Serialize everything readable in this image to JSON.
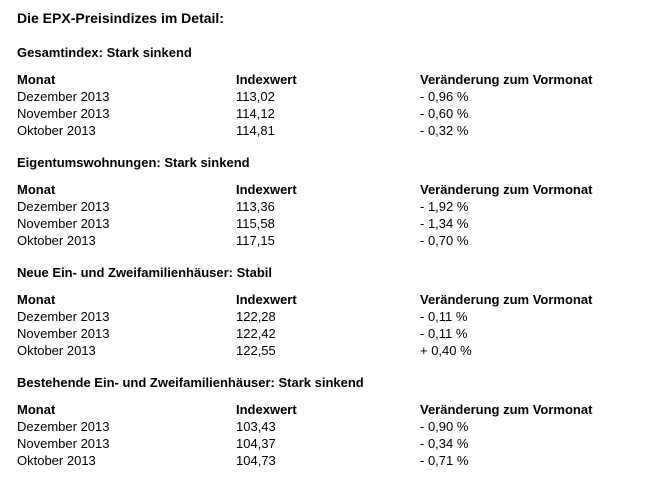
{
  "page": {
    "title": "Die EPX-Preisindizes im Detail:"
  },
  "columns": {
    "monat": "Monat",
    "indexwert": "Indexwert",
    "veraenderung": "Veränderung zum Vormonat"
  },
  "sections": [
    {
      "heading": "Gesamtindex: Stark sinkend",
      "rows": [
        {
          "monat": "Dezember 2013",
          "indexwert": "113,02",
          "veraenderung": "- 0,96 %"
        },
        {
          "monat": "November 2013",
          "indexwert": "114,12",
          "veraenderung": "- 0,60 %"
        },
        {
          "monat": "Oktober 2013",
          "indexwert": "114,81",
          "veraenderung": "- 0,32 %"
        }
      ]
    },
    {
      "heading": "Eigentumswohnungen: Stark sinkend",
      "rows": [
        {
          "monat": "Dezember 2013",
          "indexwert": "113,36",
          "veraenderung": "- 1,92 %"
        },
        {
          "monat": "November 2013",
          "indexwert": "115,58",
          "veraenderung": "- 1,34 %"
        },
        {
          "monat": "Oktober 2013",
          "indexwert": "117,15",
          "veraenderung": "- 0,70 %"
        }
      ]
    },
    {
      "heading": "Neue Ein- und Zweifamilienhäuser: Stabil",
      "rows": [
        {
          "monat": "Dezember 2013",
          "indexwert": "122,28",
          "veraenderung": "- 0,11 %"
        },
        {
          "monat": "November 2013",
          "indexwert": "122,42",
          "veraenderung": "- 0,11 %"
        },
        {
          "monat": "Oktober 2013",
          "indexwert": "122,55",
          "veraenderung": "+ 0,40 %"
        }
      ]
    },
    {
      "heading": "Bestehende Ein- und Zweifamilienhäuser: Stark sinkend",
      "rows": [
        {
          "monat": "Dezember 2013",
          "indexwert": "103,43",
          "veraenderung": "- 0,90 %"
        },
        {
          "monat": "November 2013",
          "indexwert": "104,37",
          "veraenderung": "- 0,34 %"
        },
        {
          "monat": "Oktober 2013",
          "indexwert": "104,73",
          "veraenderung": "- 0,71 %"
        }
      ]
    }
  ],
  "chart_data": {
    "type": "table",
    "title": "Die EPX-Preisindizes im Detail:",
    "tables": [
      {
        "heading": "Gesamtindex: Stark sinkend",
        "columns": [
          "Monat",
          "Indexwert",
          "Veränderung zum Vormonat"
        ],
        "rows": [
          [
            "Dezember 2013",
            113.02,
            -0.96
          ],
          [
            "November 2013",
            114.12,
            -0.6
          ],
          [
            "Oktober 2013",
            114.81,
            -0.32
          ]
        ]
      },
      {
        "heading": "Eigentumswohnungen: Stark sinkend",
        "columns": [
          "Monat",
          "Indexwert",
          "Veränderung zum Vormonat"
        ],
        "rows": [
          [
            "Dezember 2013",
            113.36,
            -1.92
          ],
          [
            "November 2013",
            115.58,
            -1.34
          ],
          [
            "Oktober 2013",
            117.15,
            -0.7
          ]
        ]
      },
      {
        "heading": "Neue Ein- und Zweifamilienhäuser: Stabil",
        "columns": [
          "Monat",
          "Indexwert",
          "Veränderung zum Vormonat"
        ],
        "rows": [
          [
            "Dezember 2013",
            122.28,
            -0.11
          ],
          [
            "November 2013",
            122.42,
            -0.11
          ],
          [
            "Oktober 2013",
            122.55,
            0.4
          ]
        ]
      },
      {
        "heading": "Bestehende Ein- und Zweifamilienhäuser: Stark sinkend",
        "columns": [
          "Monat",
          "Indexwert",
          "Veränderung zum Vormonat"
        ],
        "rows": [
          [
            "Dezember 2013",
            103.43,
            -0.9
          ],
          [
            "November 2013",
            104.37,
            -0.34
          ],
          [
            "Oktober 2013",
            104.73,
            -0.71
          ]
        ]
      }
    ]
  }
}
